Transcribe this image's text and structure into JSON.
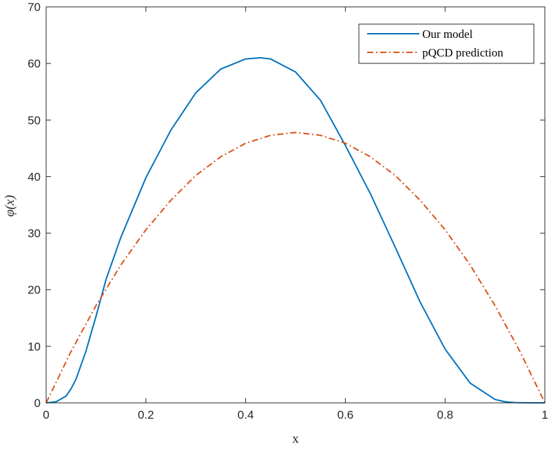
{
  "chart_data": {
    "type": "line",
    "title": "",
    "xlabel": "x",
    "ylabel": "φ(x)",
    "xlim": [
      0,
      1
    ],
    "ylim": [
      0,
      70
    ],
    "xticks": [
      0,
      0.2,
      0.4,
      0.6,
      0.8,
      1
    ],
    "xtick_labels": [
      "0",
      "0.2",
      "0.4",
      "0.6",
      "0.8",
      "1"
    ],
    "yticks": [
      0,
      10,
      20,
      30,
      40,
      50,
      60,
      70
    ],
    "ytick_labels": [
      "0",
      "10",
      "20",
      "30",
      "40",
      "50",
      "60",
      "70"
    ],
    "grid": false,
    "legend_position": "top-right",
    "series": [
      {
        "name": "Our model",
        "color": "#0072BD",
        "style": "solid",
        "x": [
          0,
          0.02,
          0.04,
          0.05,
          0.06,
          0.08,
          0.1,
          0.12,
          0.15,
          0.2,
          0.25,
          0.3,
          0.35,
          0.4,
          0.43,
          0.45,
          0.5,
          0.55,
          0.6,
          0.65,
          0.7,
          0.75,
          0.8,
          0.85,
          0.9,
          0.92,
          0.94,
          0.96,
          1
        ],
        "y": [
          0,
          0.2,
          1.2,
          2.5,
          4.2,
          9.2,
          15.3,
          21.8,
          29.3,
          39.8,
          48.2,
          54.8,
          59.0,
          60.8,
          61.0,
          60.8,
          58.5,
          53.5,
          45.5,
          37.0,
          27.5,
          17.8,
          9.5,
          3.5,
          0.6,
          0.2,
          0.05,
          0.01,
          0
        ]
      },
      {
        "name": "pQCD prediction",
        "color": "#D95319",
        "style": "dashdot",
        "x": [
          0,
          0.05,
          0.1,
          0.15,
          0.2,
          0.25,
          0.3,
          0.35,
          0.4,
          0.45,
          0.5,
          0.55,
          0.6,
          0.65,
          0.7,
          0.75,
          0.8,
          0.85,
          0.9,
          0.95,
          1
        ],
        "y": [
          0,
          9.1,
          17.2,
          24.4,
          30.6,
          35.8,
          40.2,
          43.5,
          45.9,
          47.3,
          47.8,
          47.3,
          45.9,
          43.5,
          40.2,
          35.8,
          30.6,
          24.4,
          17.2,
          9.1,
          0
        ]
      }
    ]
  }
}
